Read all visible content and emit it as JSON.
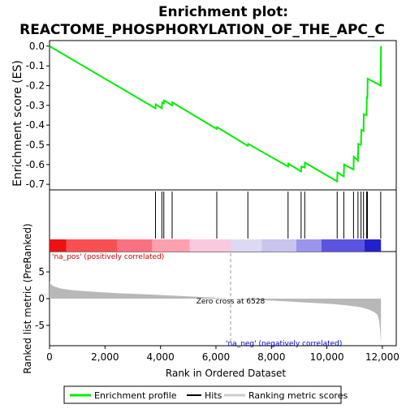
{
  "chart_data": {
    "type": "line",
    "title": "Enrichment plot:",
    "subtitle": "REACTOME_PHOSPHORYLATION_OF_THE_APC_C",
    "es_panel": {
      "ylabel": "Enrichment score (ES)",
      "ylim": [
        -0.72,
        0.02
      ],
      "yticks": [
        0.0,
        -0.1,
        -0.2,
        -0.3,
        -0.4,
        -0.5,
        -0.6,
        -0.7
      ],
      "ytick_labels": [
        "0.0",
        "-0.1",
        "-0.2",
        "-0.3",
        "-0.4",
        "-0.5",
        "-0.6",
        "-0.7"
      ],
      "series_color": "#00ee00",
      "x": [
        0,
        3820,
        3830,
        4050,
        4060,
        4120,
        4130,
        4420,
        4430,
        6030,
        6040,
        7150,
        7160,
        8600,
        8610,
        9070,
        9080,
        9200,
        9210,
        10370,
        10380,
        10610,
        10620,
        10960,
        10970,
        11120,
        11130,
        11230,
        11240,
        11320,
        11330,
        11430,
        11440,
        11460,
        11470,
        11940,
        11950
      ],
      "y": [
        0.0,
        -0.315,
        -0.295,
        -0.315,
        -0.285,
        -0.29,
        -0.275,
        -0.3,
        -0.285,
        -0.42,
        -0.41,
        -0.505,
        -0.495,
        -0.61,
        -0.595,
        -0.635,
        -0.61,
        -0.615,
        -0.59,
        -0.685,
        -0.64,
        -0.66,
        -0.6,
        -0.625,
        -0.56,
        -0.58,
        -0.495,
        -0.5,
        -0.425,
        -0.43,
        -0.345,
        -0.35,
        -0.26,
        -0.26,
        -0.165,
        -0.2,
        0.0
      ]
    },
    "hits": [
      3820,
      4050,
      4120,
      4420,
      6030,
      7150,
      8600,
      9070,
      9200,
      10370,
      10610,
      10960,
      11120,
      11230,
      11320,
      11430,
      11460,
      11940
    ],
    "rank_bar": {
      "pos_label": "'na_pos' (positively correlated)",
      "neg_label": "'na_neg' (negatively correlated)",
      "segments": [
        {
          "from": 0,
          "to": 600,
          "color": "#ee1111"
        },
        {
          "from": 600,
          "to": 2450,
          "color": "#f85050"
        },
        {
          "from": 2450,
          "to": 3700,
          "color": "#fb7080"
        },
        {
          "from": 3700,
          "to": 5050,
          "color": "#fca0b0"
        },
        {
          "from": 5050,
          "to": 6528,
          "color": "#fcc8e0"
        },
        {
          "from": 6528,
          "to": 7650,
          "color": "#ddd8f4"
        },
        {
          "from": 7650,
          "to": 8900,
          "color": "#c8c4ee"
        },
        {
          "from": 8900,
          "to": 9800,
          "color": "#9a94ec"
        },
        {
          "from": 9800,
          "to": 11350,
          "color": "#5a54e0"
        },
        {
          "from": 11350,
          "to": 11950,
          "color": "#2222cc"
        }
      ]
    },
    "metric_panel": {
      "ylabel": "Ranked list metric (PreRanked)",
      "ylim": [
        -8.5,
        8.5
      ],
      "yticks": [
        5,
        0,
        -5
      ],
      "ytick_labels": [
        "5",
        "0",
        "-5"
      ],
      "zero_cross": 6528,
      "zero_label": "Zero cross at 6528",
      "x": [
        0,
        50,
        150,
        400,
        800,
        1500,
        2500,
        3500,
        4500,
        5500,
        6528,
        7500,
        8500,
        9500,
        10200,
        10800,
        11200,
        11500,
        11700,
        11820,
        11880,
        11920,
        11950
      ],
      "y": [
        3.2,
        2.7,
        2.3,
        1.9,
        1.6,
        1.3,
        1.0,
        0.8,
        0.55,
        0.3,
        0.0,
        -0.25,
        -0.5,
        -0.8,
        -1.0,
        -1.3,
        -1.6,
        -2.0,
        -2.5,
        -3.0,
        -4.0,
        -6.0,
        -8.2
      ],
      "fill_color": "#b8b8b8"
    },
    "xaxis": {
      "xlabel": "Rank in Ordered Dataset",
      "xlim": [
        0,
        12500
      ],
      "xticks": [
        0,
        2000,
        4000,
        6000,
        8000,
        10000,
        12000
      ],
      "xtick_labels": [
        "0",
        "2,000",
        "4,000",
        "6,000",
        "8,000",
        "10,000",
        "12,000"
      ]
    },
    "legend": {
      "placement": "bottom",
      "items": [
        {
          "label": "Enrichment profile",
          "color": "#00ee00"
        },
        {
          "label": "Hits",
          "color": "#000000"
        },
        {
          "label": "Ranking metric scores",
          "color": "#cccccc"
        }
      ]
    }
  }
}
